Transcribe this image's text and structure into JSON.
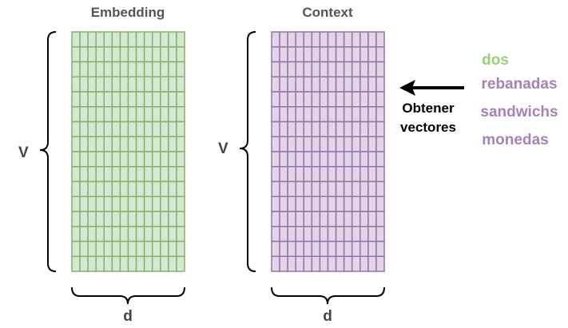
{
  "matrices": [
    {
      "id": "embedding",
      "title": "Embedding",
      "row_label": "V",
      "col_label": "d",
      "rows": 16,
      "cols": 14,
      "fill": "#d5e8d4",
      "stroke": "#82b366"
    },
    {
      "id": "context",
      "title": "Context",
      "row_label": "V",
      "col_label": "d",
      "rows": 16,
      "cols": 14,
      "fill": "#e1d5e7",
      "stroke": "#9673a6"
    }
  ],
  "arrow": {
    "label_line1": "Obtener",
    "label_line2": "vectores"
  },
  "words": [
    {
      "text": "dos",
      "color": "#97d077"
    },
    {
      "text": "rebanadas",
      "color": "#a680b8"
    },
    {
      "text": "sandwichs",
      "color": "#a680b8"
    },
    {
      "text": "monedas",
      "color": "#a680b8"
    }
  ]
}
